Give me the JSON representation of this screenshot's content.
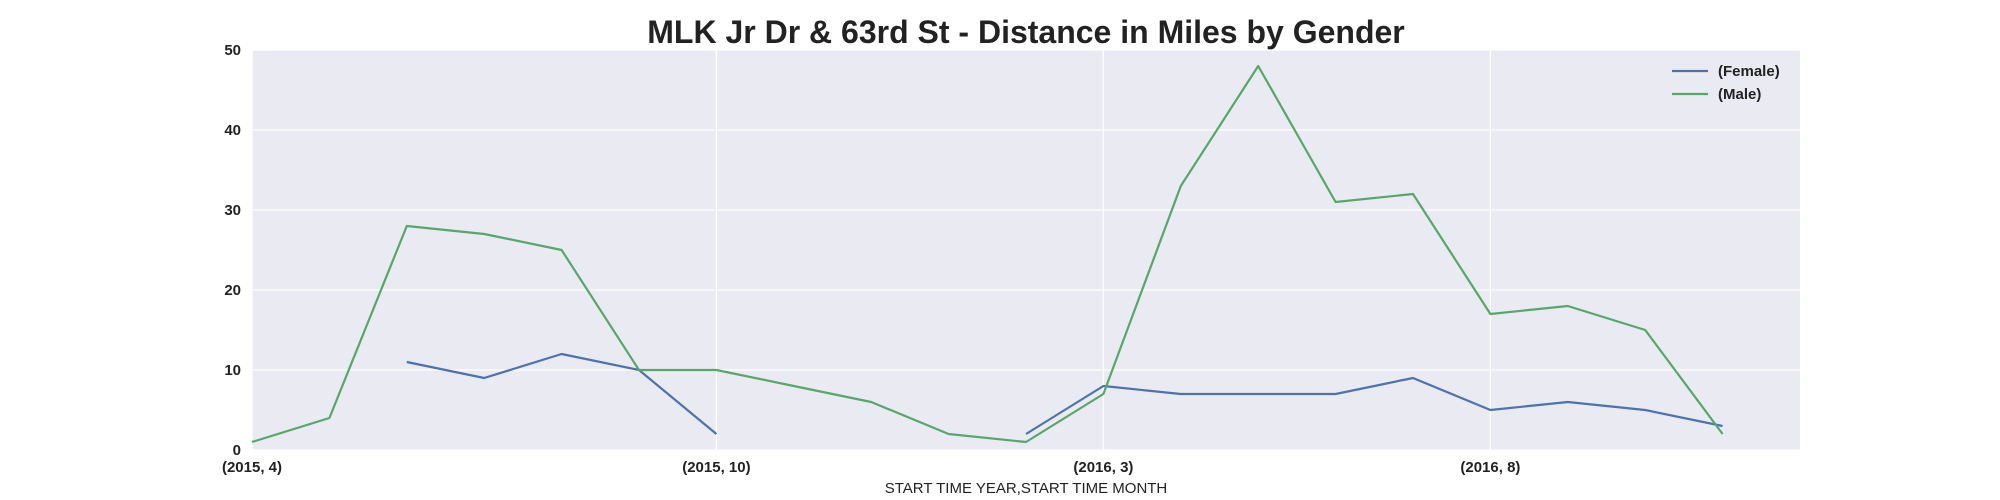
{
  "chart_data": {
    "type": "line",
    "title": "MLK Jr Dr & 63rd St - Distance in Miles by Gender",
    "xlabel": "START TIME YEAR,START TIME MONTH",
    "ylabel": "",
    "x": [
      "(2015, 4)",
      "(2015, 5)",
      "(2015, 6)",
      "(2015, 7)",
      "(2015, 8)",
      "(2015, 9)",
      "(2015, 10)",
      "(2015, 11)",
      "(2015, 12)",
      "(2016, 1)",
      "(2016, 2)",
      "(2016, 3)",
      "(2016, 4)",
      "(2016, 5)",
      "(2016, 6)",
      "(2016, 7)",
      "(2016, 8)",
      "(2016, 9)",
      "(2016, 10)",
      "(2016, 11)",
      "(2016, 12)"
    ],
    "xticks": [
      "(2015, 4)",
      "(2015, 10)",
      "(2016, 3)",
      "(2016, 8)"
    ],
    "ylim": [
      0,
      50
    ],
    "yticks": [
      0,
      10,
      20,
      30,
      40,
      50
    ],
    "grid": true,
    "legend_position": "top-right",
    "series": [
      {
        "name": "(Female)",
        "color": "#4c72b0",
        "values": [
          null,
          null,
          11,
          9,
          12,
          10,
          2,
          null,
          null,
          null,
          2,
          8,
          7,
          7,
          7,
          9,
          5,
          6,
          5,
          3,
          null
        ]
      },
      {
        "name": "(Male)",
        "color": "#55a868",
        "values": [
          1,
          4,
          28,
          27,
          25,
          10,
          10,
          8,
          6,
          2,
          1,
          7,
          33,
          48,
          31,
          32,
          17,
          18,
          15,
          2,
          null
        ]
      }
    ]
  }
}
